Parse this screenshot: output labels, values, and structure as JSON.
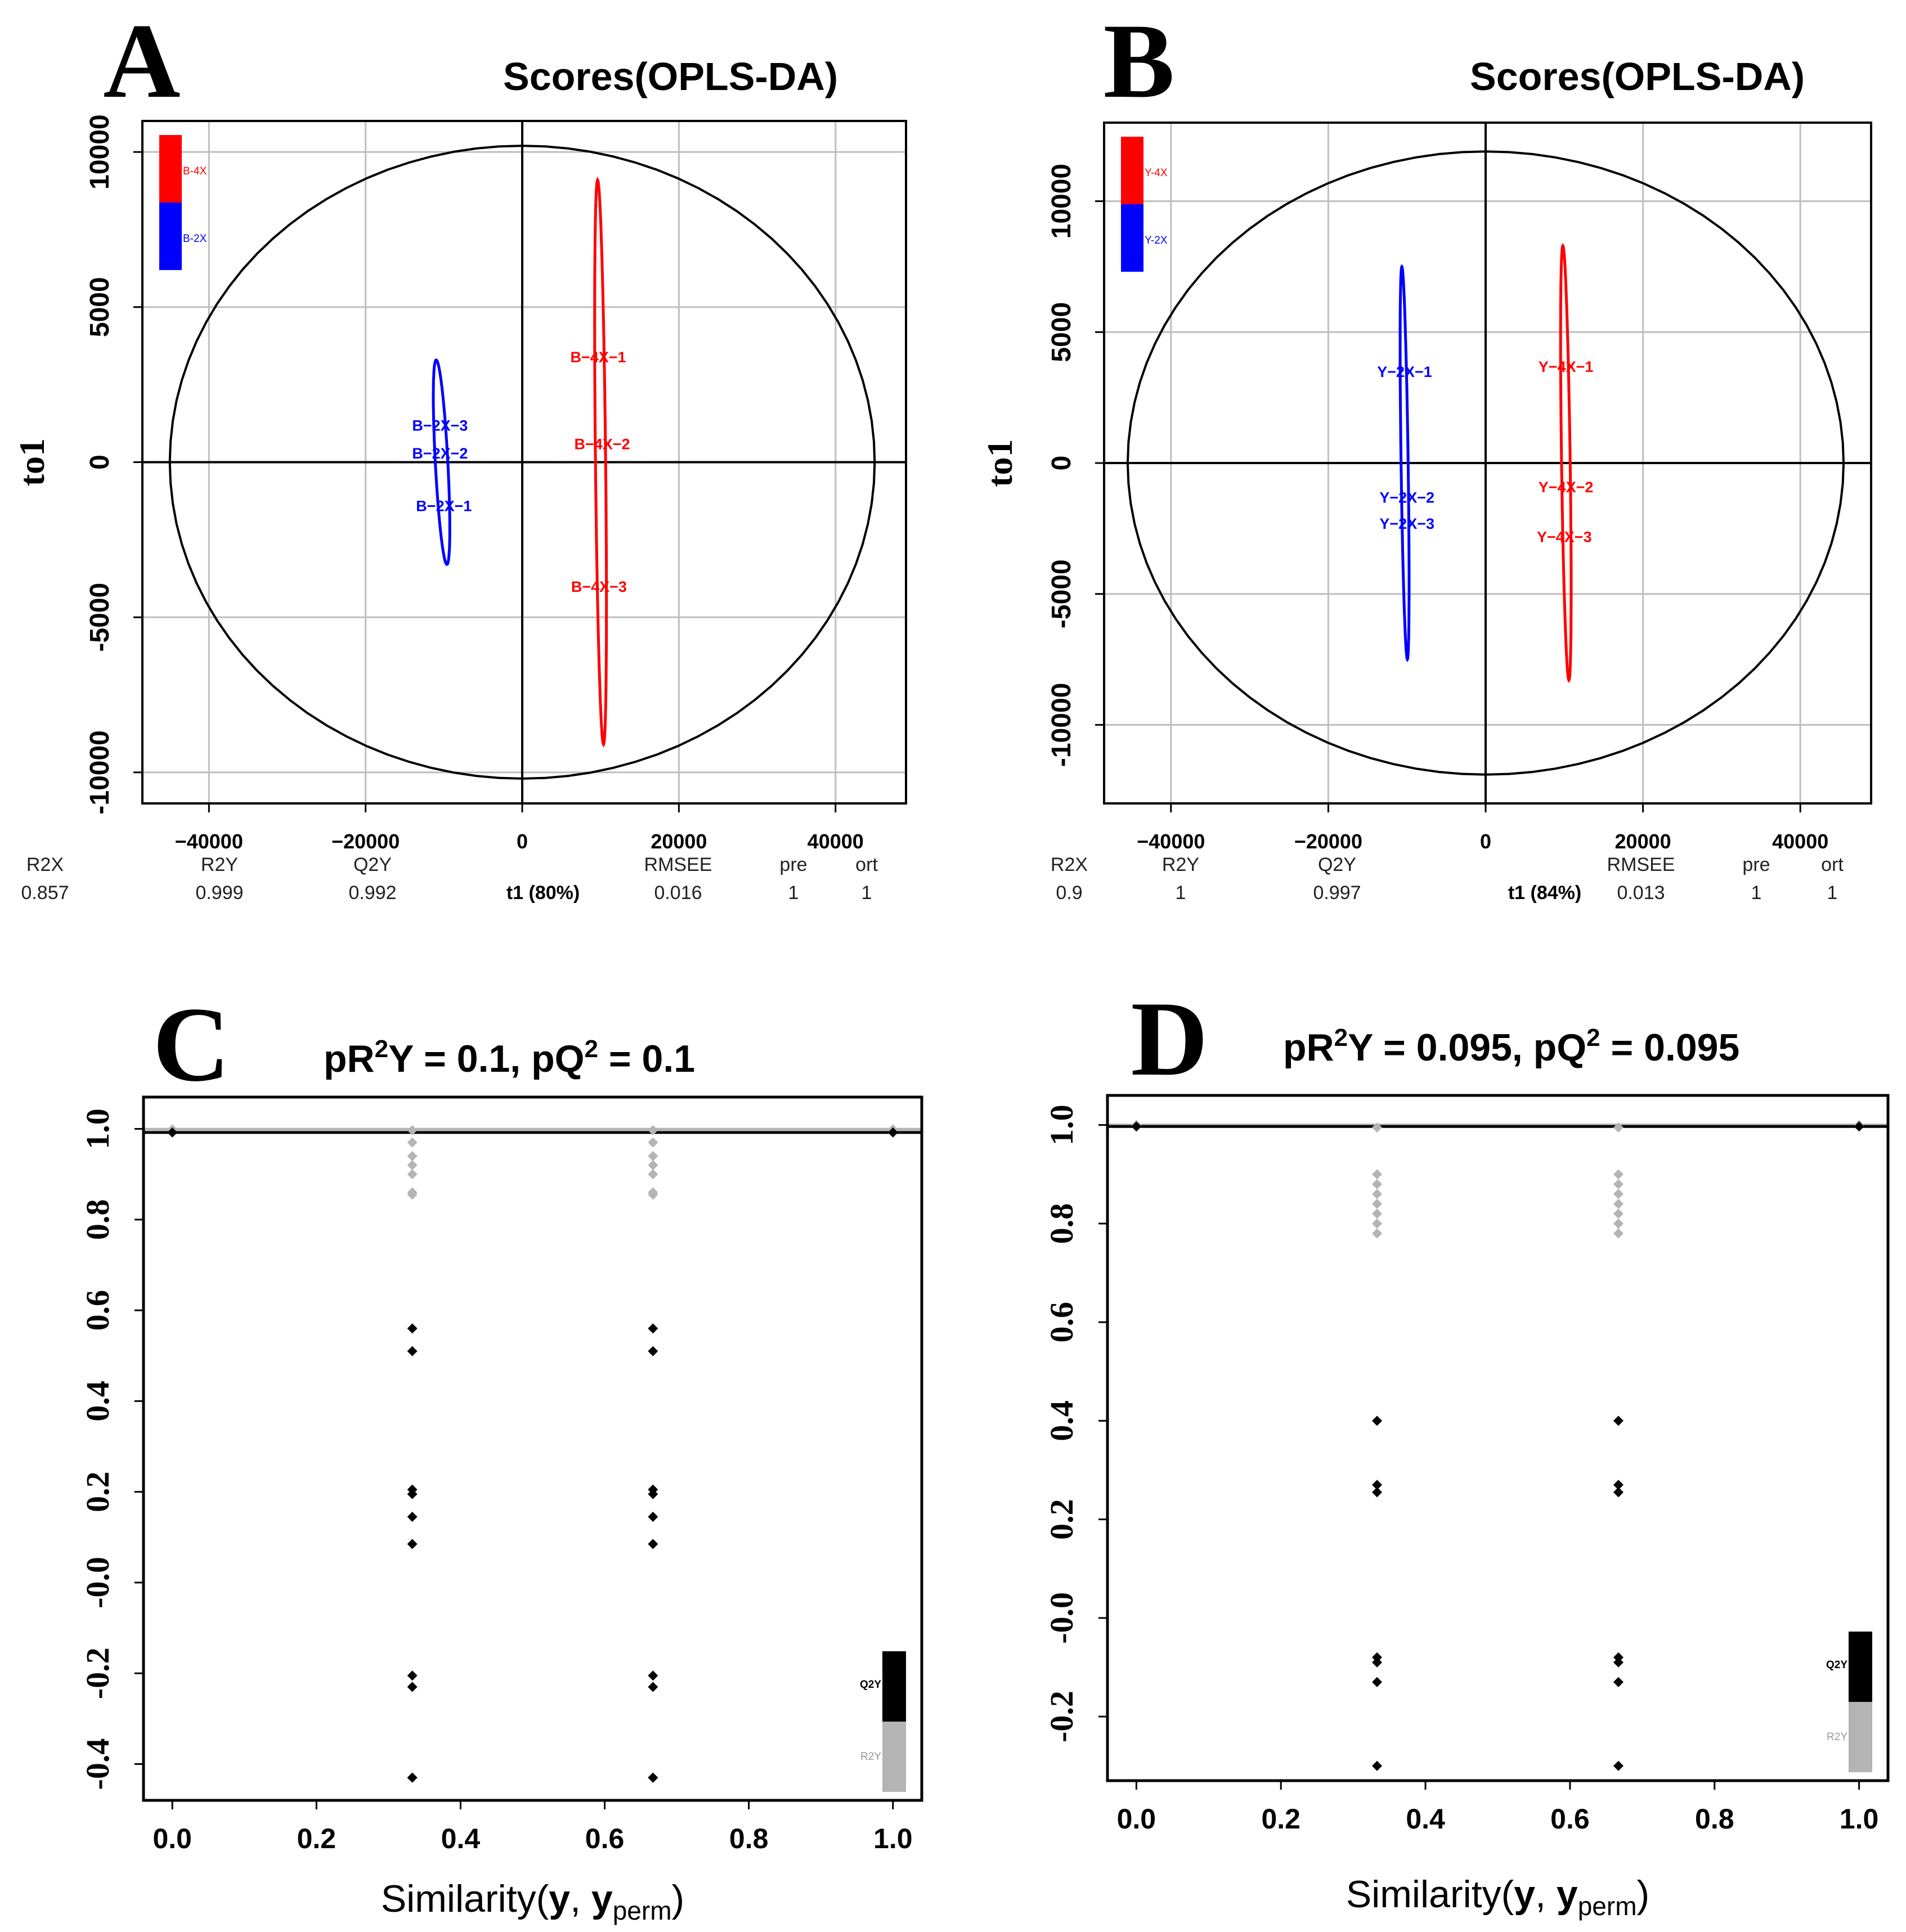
{
  "colors": {
    "red": "#ff0000",
    "blue": "#0000ff",
    "black": "#000000",
    "gray": "#b4b4b4",
    "grid": "#bebebe"
  },
  "panels": [
    {
      "letter": "A",
      "title": "Scores(OPLS-DA)"
    },
    {
      "letter": "B",
      "title": "Scores(OPLS-DA)"
    },
    {
      "letter": "C",
      "title_html": "pR²Y = 0.1, pQ² = 0.1",
      "title_parts": [
        "pR",
        "2",
        "Y = 0.1, pQ",
        "2",
        " = 0.1"
      ]
    },
    {
      "letter": "D",
      "title_html": "pR²Y = 0.095, pQ² = 0.095",
      "title_parts": [
        "pR",
        "2",
        "Y = 0.095, pQ",
        "2",
        " = 0.095"
      ]
    }
  ],
  "chart_data": [
    {
      "type": "scatter",
      "panel": "A",
      "title": "Scores(OPLS-DA)",
      "ylabel": "to1",
      "xlabel": "t1 (80%)",
      "xlim": [
        -48500,
        49000
      ],
      "ylim": [
        -11000,
        11000
      ],
      "xticks": [
        -40000,
        -20000,
        0,
        20000,
        40000
      ],
      "yticks": [
        -10000,
        -5000,
        0,
        5000,
        10000
      ],
      "xtick_labels": [
        "−40000",
        "−20000",
        "0",
        "20000",
        "40000"
      ],
      "ytick_labels": [
        "-10000",
        "-5000",
        "0",
        "5000",
        "10000"
      ],
      "legend": [
        {
          "name": "B-4X",
          "color": "#ff0000"
        },
        {
          "name": "B-2X",
          "color": "#0000ff"
        }
      ],
      "hotelling_ellipse": {
        "cx": 0,
        "cy": 0,
        "rx": 45000,
        "ry": 10200
      },
      "group_ellipses": [
        {
          "color": "#0000ff",
          "cx": -10300,
          "cy": 0,
          "rx": 800,
          "ry": 3300,
          "tilt": -3
        },
        {
          "color": "#ff0000",
          "cx": 10000,
          "cy": 0,
          "rx": 650,
          "ry": 9100,
          "tilt": -0.6
        }
      ],
      "points": [
        {
          "label": "B−4X−1",
          "x": 9700,
          "y": 3400,
          "color": "#ff0000"
        },
        {
          "label": "B−4X−2",
          "x": 10200,
          "y": 600,
          "color": "#ff0000"
        },
        {
          "label": "B−4X−3",
          "x": 9800,
          "y": -4000,
          "color": "#ff0000"
        },
        {
          "label": "B−2X−3",
          "x": -10500,
          "y": 1200,
          "color": "#0000ff"
        },
        {
          "label": "B−2X−2",
          "x": -10500,
          "y": 300,
          "color": "#0000ff"
        },
        {
          "label": "B−2X−1",
          "x": -10000,
          "y": -1400,
          "color": "#0000ff"
        }
      ],
      "stats": [
        {
          "name": "R2X",
          "value": "0.857"
        },
        {
          "name": "R2Y",
          "value": "0.999"
        },
        {
          "name": "Q2Y",
          "value": "0.992"
        },
        {
          "name": "",
          "value": "t1 (80%)"
        },
        {
          "name": "RMSEE",
          "value": "0.016"
        },
        {
          "name": "pre",
          "value": "1"
        },
        {
          "name": "ort",
          "value": "1"
        }
      ]
    },
    {
      "type": "scatter",
      "panel": "B",
      "title": "Scores(OPLS-DA)",
      "ylabel": "to1",
      "xlabel": "t1 (84%)",
      "xlim": [
        -48500,
        49000
      ],
      "ylim": [
        -13000,
        13000
      ],
      "xticks": [
        -40000,
        -20000,
        0,
        20000,
        40000
      ],
      "yticks": [
        -10000,
        -5000,
        0,
        5000,
        10000
      ],
      "xtick_labels": [
        "−40000",
        "−20000",
        "0",
        "20000",
        "40000"
      ],
      "ytick_labels": [
        "-10000",
        "-5000",
        "0",
        "5000",
        "10000"
      ],
      "legend": [
        {
          "name": "Y-4X",
          "color": "#ff0000"
        },
        {
          "name": "Y-2X",
          "color": "#0000ff"
        }
      ],
      "hotelling_ellipse": {
        "cx": 0,
        "cy": 0,
        "rx": 45500,
        "ry": 11900
      },
      "group_ellipses": [
        {
          "color": "#0000ff",
          "cx": -10300,
          "cy": 0,
          "rx": 450,
          "ry": 7500,
          "tilt": -0.8
        },
        {
          "color": "#ff0000",
          "cx": 10200,
          "cy": 0,
          "rx": 550,
          "ry": 8300,
          "tilt": -0.8
        }
      ],
      "points": [
        {
          "label": "Y−2X−1",
          "x": -10300,
          "y": 3500,
          "color": "#0000ff"
        },
        {
          "label": "Y−2X−2",
          "x": -10000,
          "y": -1300,
          "color": "#0000ff"
        },
        {
          "label": "Y−2X−3",
          "x": -10000,
          "y": -2300,
          "color": "#0000ff"
        },
        {
          "label": "Y−4X−1",
          "x": 10200,
          "y": 3700,
          "color": "#ff0000"
        },
        {
          "label": "Y−4X−2",
          "x": 10200,
          "y": -900,
          "color": "#ff0000"
        },
        {
          "label": "Y−4X−3",
          "x": 10000,
          "y": -2800,
          "color": "#ff0000"
        }
      ],
      "stats": [
        {
          "name": "R2X",
          "value": "0.9"
        },
        {
          "name": "R2Y",
          "value": "1"
        },
        {
          "name": "Q2Y",
          "value": "0.997"
        },
        {
          "name": "",
          "value": "t1 (84%)"
        },
        {
          "name": "RMSEE",
          "value": "0.013"
        },
        {
          "name": "pre",
          "value": "1"
        },
        {
          "name": "ort",
          "value": "1"
        }
      ]
    },
    {
      "type": "scatter",
      "panel": "C",
      "title": "pR²Y = 0.1, pQ² = 0.1",
      "xlabel": "Similarity(y, yperm)",
      "xlim": [
        -0.04,
        1.04
      ],
      "ylim": [
        -0.48,
        1.07
      ],
      "xticks": [
        0,
        0.2,
        0.4,
        0.6,
        0.8,
        1
      ],
      "yticks": [
        -0.4,
        -0.2,
        0,
        0.2,
        0.4,
        0.6,
        0.8,
        1
      ],
      "xtick_labels": [
        "0.0",
        "0.2",
        "0.4",
        "0.6",
        "0.8",
        "1.0"
      ],
      "ytick_labels": [
        "-0.4",
        "-0.2",
        "-0.0",
        "0.2",
        "0.4",
        "0.6",
        "0.8",
        "1.0"
      ],
      "reference_lines": [
        {
          "y": 0.999,
          "color": "#b4b4b4"
        },
        {
          "y": 0.992,
          "color": "#000000"
        }
      ],
      "legend": [
        {
          "name": "Q2Y",
          "color": "#000000"
        },
        {
          "name": "R2Y",
          "color": "#b4b4b4"
        }
      ],
      "series": [
        {
          "name": "R2Y",
          "color": "#b4b4b4",
          "x": [
            0,
            0.333,
            0.333,
            0.333,
            0.333,
            0.333,
            0.333,
            0.333,
            0.667,
            0.667,
            0.667,
            0.667,
            0.667,
            0.667,
            0.667,
            1.0
          ],
          "y": [
            0.999,
            0.997,
            0.97,
            0.94,
            0.92,
            0.9,
            0.86,
            0.855,
            0.997,
            0.97,
            0.94,
            0.92,
            0.9,
            0.86,
            0.855,
            0.999
          ]
        },
        {
          "name": "Q2Y",
          "color": "#000000",
          "x": [
            0,
            0.333,
            0.333,
            0.333,
            0.333,
            0.333,
            0.333,
            0.333,
            0.333,
            0.333,
            0.333,
            0.667,
            0.667,
            0.667,
            0.667,
            0.667,
            0.667,
            0.667,
            0.667,
            0.667,
            0.667,
            1.0
          ],
          "y": [
            0.992,
            0.56,
            0.51,
            0.205,
            0.195,
            0.145,
            0.085,
            -0.205,
            -0.23,
            -0.43,
            -0.43,
            0.56,
            0.51,
            0.205,
            0.195,
            0.145,
            0.085,
            -0.205,
            -0.23,
            -0.43,
            -0.43,
            0.992
          ]
        }
      ]
    },
    {
      "type": "scatter",
      "panel": "D",
      "title": "pR²Y = 0.095, pQ² = 0.095",
      "xlabel": "Similarity(y, yperm)",
      "xlim": [
        -0.04,
        1.04
      ],
      "ylim": [
        -0.33,
        1.06
      ],
      "xticks": [
        0,
        0.2,
        0.4,
        0.6,
        0.8,
        1
      ],
      "yticks": [
        -0.2,
        0,
        0.2,
        0.4,
        0.6,
        0.8,
        1
      ],
      "xtick_labels": [
        "0.0",
        "0.2",
        "0.4",
        "0.6",
        "0.8",
        "1.0"
      ],
      "ytick_labels": [
        "-0.2",
        "-0.0",
        "0.2",
        "0.4",
        "0.6",
        "0.8",
        "1.0"
      ],
      "reference_lines": [
        {
          "y": 1.0,
          "color": "#b4b4b4"
        },
        {
          "y": 0.997,
          "color": "#000000"
        }
      ],
      "legend": [
        {
          "name": "Q2Y",
          "color": "#000000"
        },
        {
          "name": "R2Y",
          "color": "#b4b4b4"
        }
      ],
      "series": [
        {
          "name": "R2Y",
          "color": "#b4b4b4",
          "x": [
            0,
            0.333,
            0.333,
            0.333,
            0.333,
            0.333,
            0.333,
            0.333,
            0.333,
            0.667,
            0.667,
            0.667,
            0.667,
            0.667,
            0.667,
            0.667,
            0.667,
            1.0
          ],
          "y": [
            1.0,
            0.995,
            0.9,
            0.88,
            0.86,
            0.84,
            0.82,
            0.8,
            0.78,
            0.995,
            0.9,
            0.88,
            0.86,
            0.84,
            0.82,
            0.8,
            0.78,
            1.0
          ]
        },
        {
          "name": "Q2Y",
          "color": "#000000",
          "x": [
            0,
            0.333,
            0.333,
            0.333,
            0.333,
            0.333,
            0.333,
            0.333,
            0.667,
            0.667,
            0.667,
            0.667,
            0.667,
            0.667,
            0.667,
            1.0
          ],
          "y": [
            0.997,
            0.4,
            0.27,
            0.255,
            -0.08,
            -0.09,
            -0.13,
            -0.3,
            0.4,
            0.27,
            0.255,
            -0.08,
            -0.09,
            -0.13,
            -0.3,
            0.997
          ]
        }
      ]
    }
  ]
}
